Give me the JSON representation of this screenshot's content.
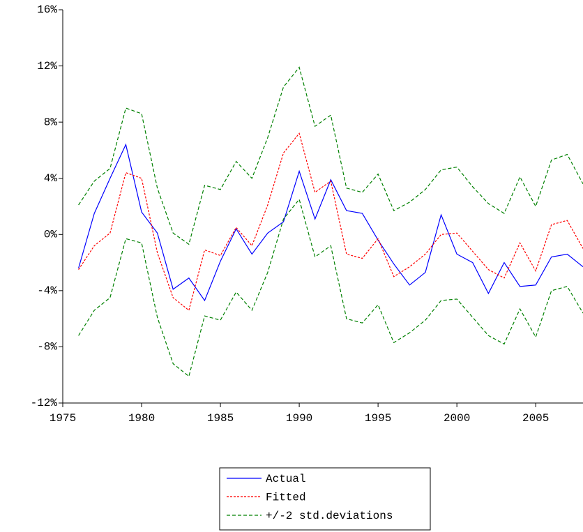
{
  "chart_data": {
    "type": "line",
    "x": [
      1976,
      1977,
      1978,
      1979,
      1980,
      1981,
      1982,
      1983,
      1984,
      1985,
      1986,
      1987,
      1988,
      1989,
      1990,
      1991,
      1992,
      1993,
      1994,
      1995,
      1996,
      1997,
      1998,
      1999,
      2000,
      2001,
      2002,
      2003,
      2004,
      2005,
      2006,
      2007,
      2008
    ],
    "xlim": [
      1975,
      2008
    ],
    "xticks": [
      1975,
      1980,
      1985,
      1990,
      1995,
      2000,
      2005
    ],
    "ylim": [
      -12,
      16
    ],
    "yticks": [
      {
        "value": -12,
        "label": "-12%"
      },
      {
        "value": -8,
        "label": "-8%"
      },
      {
        "value": -4,
        "label": "-4%"
      },
      {
        "value": 0,
        "label": "0%"
      },
      {
        "value": 4,
        "label": "4%"
      },
      {
        "value": 8,
        "label": "8%"
      },
      {
        "value": 12,
        "label": "12%"
      },
      {
        "value": 16,
        "label": "16%"
      }
    ],
    "grid": false,
    "legend": "bottom",
    "series": [
      {
        "name": "Actual",
        "color": "#0000ff",
        "style": "solid",
        "values": [
          -2.4,
          1.5,
          4.0,
          6.4,
          1.6,
          0.1,
          -3.9,
          -3.1,
          -4.7,
          -1.9,
          0.4,
          -1.4,
          0.1,
          0.9,
          4.5,
          1.1,
          3.9,
          1.7,
          1.5,
          -0.4,
          -2.1,
          -3.6,
          -2.7,
          1.4,
          -1.4,
          -2.0,
          -4.2,
          -2.0,
          -3.7,
          -3.6,
          -1.6,
          -1.4,
          -2.3
        ]
      },
      {
        "name": "Fitted",
        "color": "#ff0000",
        "style": "dotted",
        "values": [
          -2.5,
          -0.8,
          0.1,
          4.4,
          4.0,
          -1.3,
          -4.5,
          -5.4,
          -1.1,
          -1.5,
          0.5,
          -0.8,
          2.1,
          5.8,
          7.2,
          3.0,
          3.8,
          -1.4,
          -1.7,
          -0.3,
          -3.0,
          -2.3,
          -1.4,
          0.0,
          0.1,
          -1.2,
          -2.5,
          -3.1,
          -0.6,
          -2.6,
          0.7,
          1.0,
          -1.0
        ]
      },
      {
        "name": "+/-2 std.deviations",
        "color": "#008000",
        "style": "dashed",
        "upper": [
          2.1,
          3.8,
          4.7,
          9.0,
          8.6,
          3.3,
          0.1,
          -0.7,
          3.5,
          3.2,
          5.2,
          4.0,
          6.9,
          10.5,
          11.9,
          7.7,
          8.5,
          3.3,
          3.0,
          4.3,
          1.7,
          2.3,
          3.2,
          4.6,
          4.8,
          3.4,
          2.2,
          1.5,
          4.1,
          2.0,
          5.3,
          5.7,
          3.6
        ],
        "lower": [
          -7.2,
          -5.4,
          -4.5,
          -0.3,
          -0.6,
          -5.9,
          -9.2,
          -10.1,
          -5.8,
          -6.1,
          -4.1,
          -5.4,
          -2.7,
          1.1,
          2.5,
          -1.6,
          -0.8,
          -6.0,
          -6.3,
          -5.0,
          -7.7,
          -7.0,
          -6.1,
          -4.7,
          -4.6,
          -5.9,
          -7.2,
          -7.8,
          -5.3,
          -7.3,
          -4.0,
          -3.7,
          -5.6
        ]
      }
    ]
  }
}
